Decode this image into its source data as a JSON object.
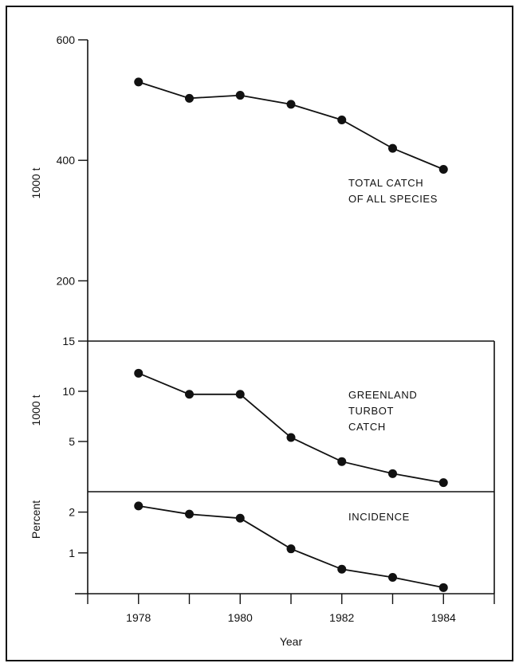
{
  "chart_data": [
    {
      "panel": "total-catch",
      "type": "line",
      "x": [
        1978,
        1979,
        1980,
        1981,
        1982,
        1983,
        1984
      ],
      "values": [
        530,
        503,
        508,
        493,
        467,
        420,
        385
      ],
      "ylabel": "1000 t",
      "ylim": [
        100,
        600
      ],
      "yticks": [
        200,
        400,
        600
      ],
      "annotation": [
        "TOTAL CATCH",
        "OF ALL SPECIES"
      ]
    },
    {
      "panel": "greenland-turbot-catch",
      "type": "line",
      "x": [
        1978,
        1979,
        1980,
        1981,
        1982,
        1983,
        1984
      ],
      "values": [
        11.8,
        9.7,
        9.7,
        5.4,
        3.0,
        1.8,
        0.9
      ],
      "ylabel": "1000 t",
      "ylim": [
        0,
        15
      ],
      "yticks": [
        5,
        10,
        15
      ],
      "annotation": [
        "GREENLAND",
        "TURBOT",
        "CATCH"
      ]
    },
    {
      "panel": "incidence",
      "type": "line",
      "x": [
        1978,
        1979,
        1980,
        1981,
        1982,
        1983,
        1984
      ],
      "values": [
        2.15,
        1.95,
        1.85,
        1.1,
        0.6,
        0.4,
        0.15
      ],
      "ylabel": "Percent",
      "ylim": [
        0,
        2.5
      ],
      "yticks": [
        1,
        2
      ],
      "annotation": [
        "INCIDENCE"
      ]
    }
  ],
  "x_axis": {
    "label": "Year",
    "xlim": [
      1977,
      1985
    ],
    "tick_labels": [
      "1978",
      "1980",
      "1982",
      "1984"
    ]
  }
}
